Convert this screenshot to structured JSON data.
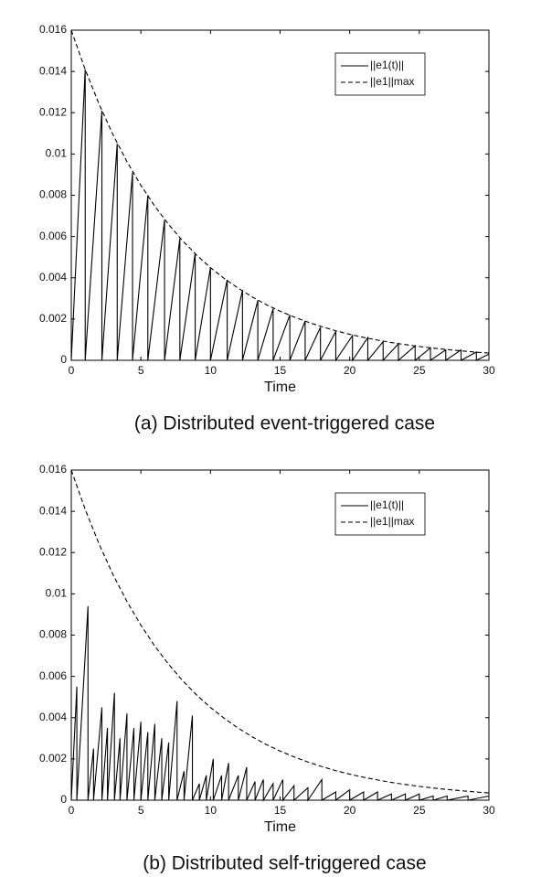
{
  "chart_data": [
    {
      "type": "line",
      "caption": "(a) Distributed event-triggered case",
      "xlabel": "Time",
      "xlim": [
        0,
        30
      ],
      "ylim": [
        0,
        0.016
      ],
      "xticks": [
        0,
        5,
        10,
        15,
        20,
        25,
        30
      ],
      "yticks": [
        0,
        0.002,
        0.004,
        0.006,
        0.008,
        0.01,
        0.012,
        0.014,
        0.016
      ],
      "legend": "upper right",
      "grid": false,
      "series": [
        {
          "name": "||e1(t)||",
          "color": "#000000",
          "dashed": false,
          "x": [
            0,
            1.0,
            1.0,
            2.2,
            2.2,
            3.3,
            3.3,
            4.4,
            4.4,
            5.5,
            5.5,
            6.7,
            6.7,
            7.8,
            7.8,
            8.9,
            8.9,
            10.0,
            10.0,
            11.2,
            11.2,
            12.3,
            12.3,
            13.4,
            13.4,
            14.5,
            14.5,
            15.7,
            15.7,
            16.8,
            16.8,
            17.9,
            17.9,
            19.0,
            19.0,
            20.2,
            20.2,
            21.3,
            21.3,
            22.4,
            22.4,
            23.5,
            23.5,
            24.7,
            24.7,
            25.8,
            25.8,
            26.9,
            26.9,
            28.0,
            28.0,
            29.1,
            29.1,
            30
          ],
          "values": [
            0,
            0.0141,
            0,
            0.0121,
            0,
            0.0105,
            0,
            0.0091,
            0,
            0.008,
            0,
            0.0068,
            0,
            0.0059,
            0,
            0.0052,
            0,
            0.0045,
            0,
            0.0039,
            0,
            0.0034,
            0,
            0.0029,
            0,
            0.0025,
            0,
            0.0022,
            0,
            0.0019,
            0,
            0.0016,
            0,
            0.0014,
            0,
            0.0012,
            0,
            0.0011,
            0,
            0.0009,
            0,
            0.0008,
            0,
            0.0007,
            0,
            0.0006,
            0,
            0.0005,
            0,
            0.0005,
            0,
            0.0004,
            0,
            0.0003
          ]
        },
        {
          "name": "||e1||max",
          "color": "#000000",
          "dashed": true,
          "x": [
            0,
            1,
            2,
            3,
            4,
            5,
            6,
            7,
            8,
            9,
            10,
            11,
            12,
            13,
            14,
            15,
            16,
            17,
            18,
            19,
            20,
            21,
            22,
            23,
            24,
            25,
            26,
            27,
            28,
            29,
            30
          ],
          "values": [
            0.016,
            0.01409,
            0.01241,
            0.01093,
            0.00963,
            0.00848,
            0.00747,
            0.00658,
            0.00579,
            0.0051,
            0.00449,
            0.00396,
            0.00349,
            0.00307,
            0.0027,
            0.00238,
            0.0021,
            0.00185,
            0.00163,
            0.00143,
            0.00126,
            0.00111,
            0.00098,
            0.00086,
            0.00076,
            0.00067,
            0.00059,
            0.00052,
            0.00046,
            0.0004,
            0.00035
          ]
        }
      ]
    },
    {
      "type": "line",
      "caption": "(b) Distributed self-triggered case",
      "xlabel": "Time",
      "xlim": [
        0,
        30
      ],
      "ylim": [
        0,
        0.016
      ],
      "xticks": [
        0,
        5,
        10,
        15,
        20,
        25,
        30
      ],
      "yticks": [
        0,
        0.002,
        0.004,
        0.006,
        0.008,
        0.01,
        0.012,
        0.014,
        0.016
      ],
      "legend": "upper right",
      "grid": false,
      "series": [
        {
          "name": "||e1(t)||",
          "color": "#000000",
          "dashed": false,
          "x": [
            0,
            0.4,
            0.4,
            1.2,
            1.2,
            1.6,
            1.6,
            2.2,
            2.2,
            2.6,
            2.6,
            3.1,
            3.1,
            3.5,
            3.5,
            4.0,
            4.0,
            4.5,
            4.5,
            5.0,
            5.0,
            5.5,
            5.5,
            6.0,
            6.0,
            6.5,
            6.5,
            7.0,
            7.0,
            7.6,
            7.6,
            8.1,
            8.1,
            8.7,
            8.7,
            9.2,
            9.2,
            9.7,
            9.7,
            10.2,
            10.2,
            10.8,
            10.8,
            11.3,
            11.3,
            12.0,
            12.0,
            12.6,
            12.6,
            13.2,
            13.2,
            13.8,
            13.8,
            14.5,
            14.5,
            15.2,
            15.2,
            16.0,
            16.0,
            17.0,
            17.0,
            18.0,
            18.0,
            19.0,
            19.0,
            20.0,
            20.0,
            21.0,
            21.0,
            22.0,
            22.0,
            23.0,
            23.0,
            24.0,
            24.0,
            25.0,
            25.0,
            26.0,
            26.0,
            27.0,
            27.0,
            28.5,
            28.5,
            30
          ],
          "values": [
            0,
            0.0055,
            0,
            0.0094,
            0,
            0.0025,
            0,
            0.0045,
            0,
            0.0035,
            0,
            0.0052,
            0,
            0.003,
            0,
            0.0042,
            0,
            0.0035,
            0,
            0.0038,
            0,
            0.0033,
            0,
            0.0037,
            0,
            0.003,
            0,
            0.0028,
            0,
            0.0048,
            0,
            0.0014,
            0,
            0.0041,
            0,
            0.0008,
            0,
            0.0012,
            0,
            0.002,
            0,
            0.0012,
            0,
            0.0018,
            0,
            0.0012,
            0,
            0.0016,
            0,
            0.0009,
            0,
            0.001,
            0,
            0.0008,
            0,
            0.001,
            0,
            0.0007,
            0,
            0.0006,
            0,
            0.001,
            0,
            0.0004,
            0,
            0.0005,
            0,
            0.0004,
            0,
            0.0004,
            0,
            0.0003,
            0,
            0.0003,
            0,
            0.0003,
            0,
            0.0002,
            0,
            0.0002,
            0,
            0.0002,
            0,
            0.0002
          ]
        },
        {
          "name": "||e1||max",
          "color": "#000000",
          "dashed": true,
          "x": [
            0,
            1,
            2,
            3,
            4,
            5,
            6,
            7,
            8,
            9,
            10,
            11,
            12,
            13,
            14,
            15,
            16,
            17,
            18,
            19,
            20,
            21,
            22,
            23,
            24,
            25,
            26,
            27,
            28,
            29,
            30
          ],
          "values": [
            0.016,
            0.01409,
            0.01241,
            0.01093,
            0.00963,
            0.00848,
            0.00747,
            0.00658,
            0.00579,
            0.0051,
            0.00449,
            0.00396,
            0.00349,
            0.00307,
            0.0027,
            0.00238,
            0.0021,
            0.00185,
            0.00163,
            0.00143,
            0.00126,
            0.00111,
            0.00098,
            0.00086,
            0.00076,
            0.00067,
            0.00059,
            0.00052,
            0.00046,
            0.0004,
            0.00035
          ]
        }
      ]
    }
  ]
}
